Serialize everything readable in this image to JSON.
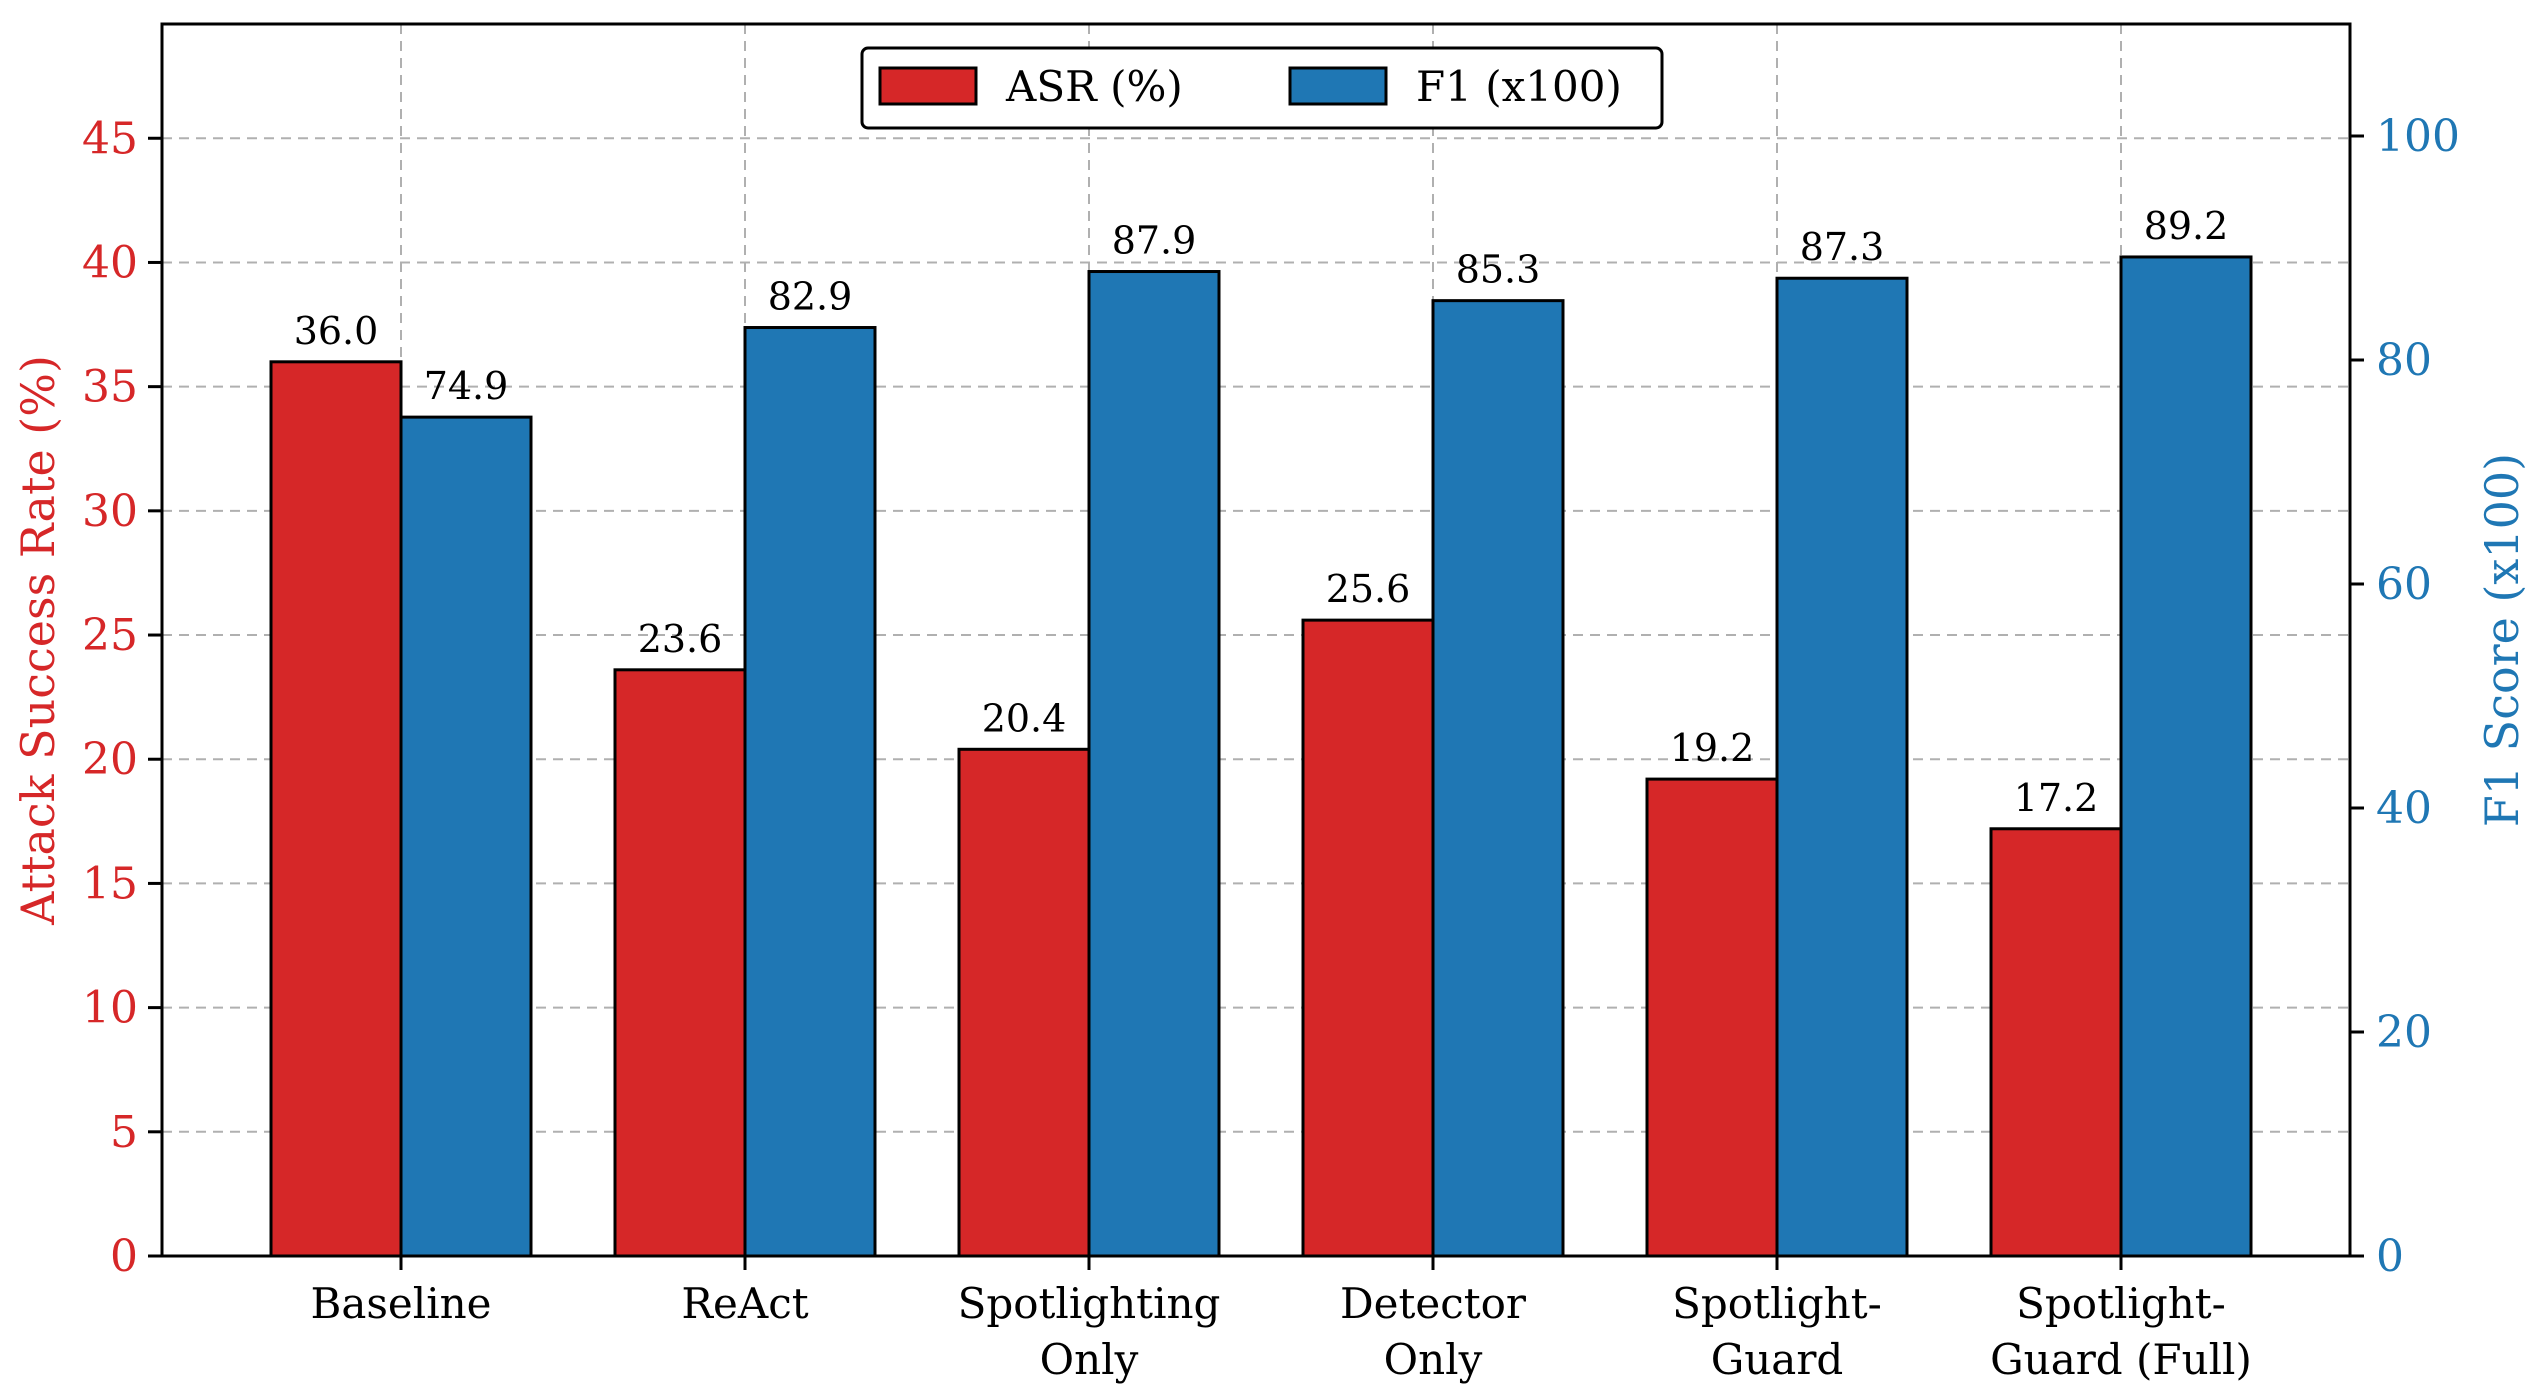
{
  "chart_data": {
    "type": "bar",
    "categories": [
      [
        "Baseline"
      ],
      [
        "ReAct"
      ],
      [
        "Spotlighting",
        "Only"
      ],
      [
        "Detector",
        "Only"
      ],
      [
        "Spotlight-",
        "Guard"
      ],
      [
        "Spotlight-",
        "Guard (Full)"
      ]
    ],
    "series": [
      {
        "name": "ASR (%)",
        "axis": "left",
        "color": "#d62728",
        "values": [
          36.0,
          23.6,
          20.4,
          25.6,
          19.2,
          17.2
        ],
        "labels": [
          "36.0",
          "23.6",
          "20.4",
          "25.6",
          "19.2",
          "17.2"
        ]
      },
      {
        "name": "F1 (x100)",
        "axis": "right",
        "color": "#1f77b4",
        "values": [
          74.9,
          82.9,
          87.9,
          85.3,
          87.3,
          89.2
        ],
        "labels": [
          "74.9",
          "82.9",
          "87.9",
          "85.3",
          "87.3",
          "89.2"
        ]
      }
    ],
    "ylabel": "Attack Success Rate (%)",
    "ylabel_right": "F1 Score (x100)",
    "ylim": [
      0,
      49.6
    ],
    "ylim_right": [
      0,
      110
    ],
    "yticks": [
      0,
      5,
      10,
      15,
      20,
      25,
      30,
      35,
      40,
      45
    ],
    "yticks_right": [
      0,
      20,
      40,
      60,
      80,
      100
    ],
    "left_axis_color": "#d62728",
    "right_axis_color": "#1f77b4",
    "grid": true,
    "legend_position": "top-center"
  }
}
